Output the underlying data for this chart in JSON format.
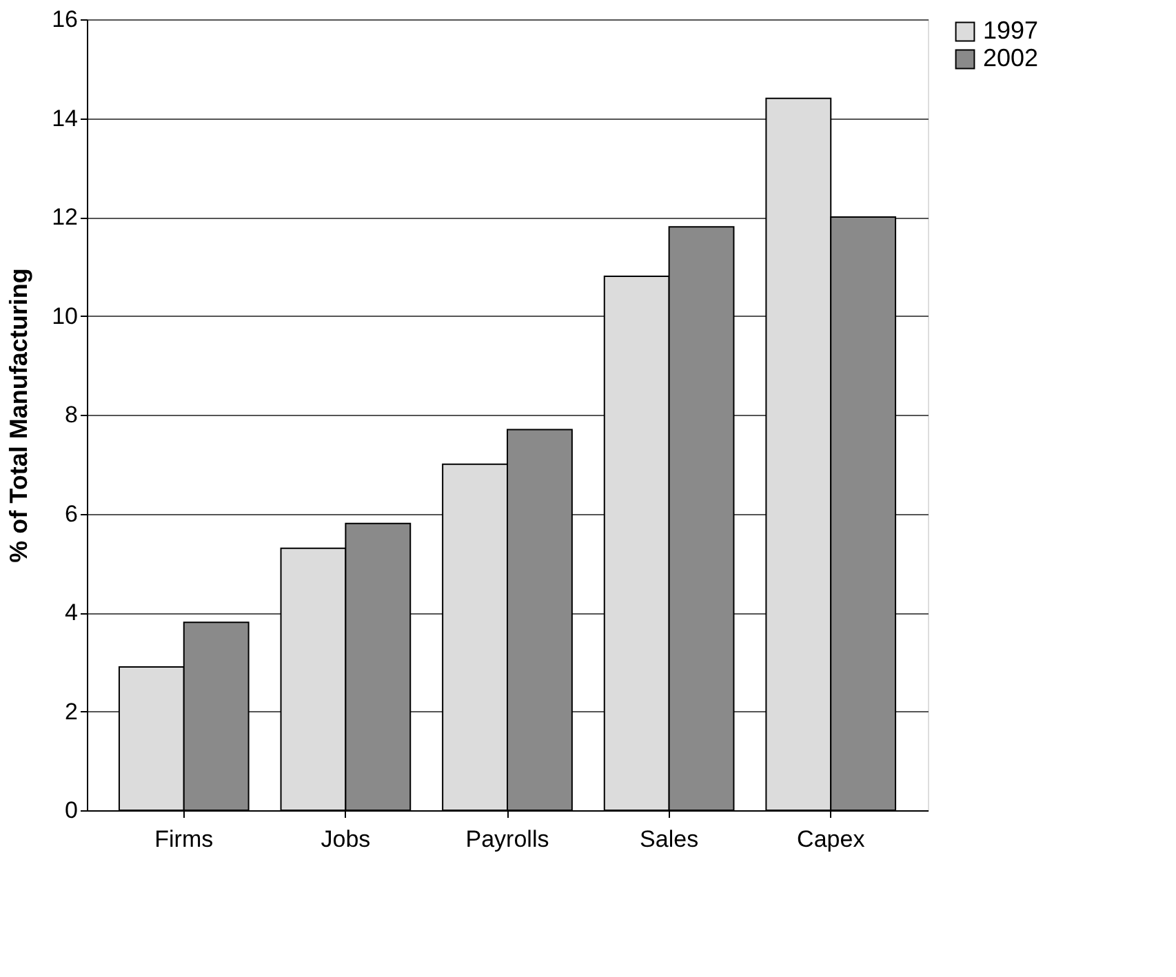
{
  "chart_data": {
    "type": "bar",
    "ylabel": "% of Total Manufacturing",
    "categories": [
      "Firms",
      "Jobs",
      "Payrolls",
      "Sales",
      "Capex"
    ],
    "series": [
      {
        "name": "1997",
        "color": "#dcdcdc",
        "values": [
          2.9,
          5.3,
          7.0,
          10.8,
          14.4
        ]
      },
      {
        "name": "2002",
        "color": "#8a8a8a",
        "values": [
          3.8,
          5.8,
          7.7,
          11.8,
          12.0
        ]
      }
    ],
    "ylim": [
      0,
      16
    ],
    "yticks": [
      0,
      2,
      4,
      6,
      8,
      10,
      12,
      14,
      16
    ],
    "grid": "y",
    "legend": "right"
  }
}
